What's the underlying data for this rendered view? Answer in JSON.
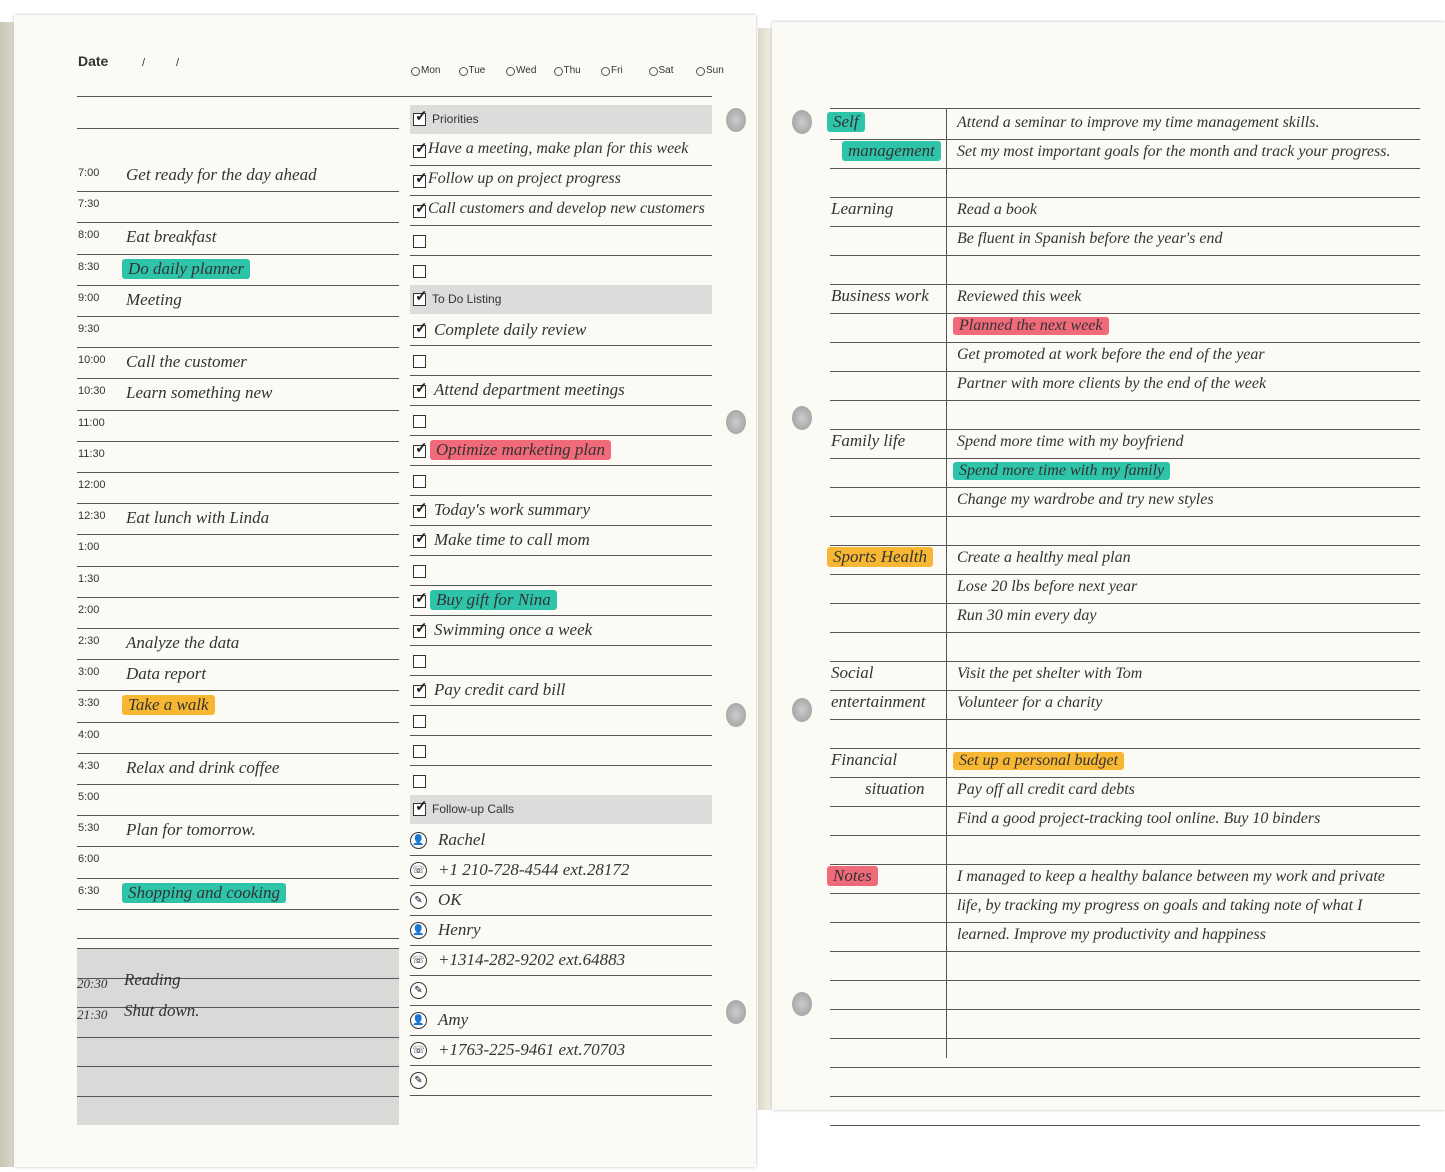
{
  "left_page": {
    "date_label": "Date",
    "date_separators": [
      "/",
      "/"
    ],
    "weekdays": [
      "Mon",
      "Tue",
      "Wed",
      "Thu",
      "Fri",
      "Sat",
      "Sun"
    ],
    "schedule": [
      {
        "time": "7:00",
        "task": "Get ready for the day ahead"
      },
      {
        "time": "7:30"
      },
      {
        "time": "8:00",
        "task": "Eat breakfast"
      },
      {
        "time": "8:30",
        "task": "Do daily planner",
        "highlight": "#2ec4a9"
      },
      {
        "time": "9:00",
        "task": "Meeting"
      },
      {
        "time": "9:30"
      },
      {
        "time": "10:00",
        "task": "Call the customer"
      },
      {
        "time": "10:30",
        "task": "Learn something new"
      },
      {
        "time": "11:00"
      },
      {
        "time": "11:30"
      },
      {
        "time": "12:00"
      },
      {
        "time": "12:30",
        "task": "Eat lunch with Linda"
      },
      {
        "time": "1:00"
      },
      {
        "time": "1:30"
      },
      {
        "time": "2:00"
      },
      {
        "time": "2:30",
        "task": "Analyze the data"
      },
      {
        "time": "3:00",
        "task": "Data report"
      },
      {
        "time": "3:30",
        "task": "Take a walk",
        "highlight": "#f7b733"
      },
      {
        "time": "4:00"
      },
      {
        "time": "4:30",
        "task": "Relax and drink coffee"
      },
      {
        "time": "5:00"
      },
      {
        "time": "5:30",
        "task": "Plan for tomorrow."
      },
      {
        "time": "6:00"
      },
      {
        "time": "6:30",
        "task": "Shopping and cooking",
        "highlight": "#2ec4a9"
      }
    ],
    "evening": [
      {
        "time": "20:30",
        "task": "Reading"
      },
      {
        "time": "21:30",
        "task": "Shut down."
      }
    ],
    "sections": [
      {
        "title": "Priorities",
        "items": [
          {
            "checked": true,
            "text": "Have a meeting, make plan for this week"
          },
          {
            "checked": true,
            "text": "Follow up on project progress"
          },
          {
            "checked": true,
            "text": "Call customers and develop new customers"
          },
          {
            "checked": false
          },
          {
            "checked": false
          }
        ]
      },
      {
        "title": "To Do Listing",
        "items": [
          {
            "checked": true,
            "text": "Complete daily review"
          },
          {
            "checked": false
          },
          {
            "checked": true,
            "text": "Attend department meetings"
          },
          {
            "checked": false
          },
          {
            "checked": true,
            "text": "Optimize marketing plan",
            "highlight": "#f06a7a"
          },
          {
            "checked": false
          },
          {
            "checked": true,
            "text": "Today's work summary"
          },
          {
            "checked": true,
            "text": "Make time to call mom"
          },
          {
            "checked": false
          },
          {
            "checked": true,
            "text": "Buy gift for Nina",
            "highlight": "#2ec4a9"
          },
          {
            "checked": true,
            "text": "Swimming once a week"
          },
          {
            "checked": false
          },
          {
            "checked": true,
            "text": "Pay credit card bill"
          },
          {
            "checked": false
          },
          {
            "checked": false
          },
          {
            "checked": false
          }
        ]
      },
      {
        "title": "Follow-up Calls",
        "calls": [
          {
            "icon": "person",
            "text": "Rachel"
          },
          {
            "icon": "phone",
            "text": "+1 210-728-4544 ext.28172"
          },
          {
            "icon": "note",
            "text": "OK"
          },
          {
            "icon": "person",
            "text": "Henry"
          },
          {
            "icon": "phone",
            "text": "+1314-282-9202 ext.64883"
          },
          {
            "icon": "note"
          },
          {
            "icon": "person",
            "text": "Amy"
          },
          {
            "icon": "phone",
            "text": "+1763-225-9461 ext.70703"
          },
          {
            "icon": "note"
          }
        ]
      }
    ]
  },
  "right_page": {
    "categories": [
      {
        "label": [
          "Self",
          "management"
        ],
        "highlight": "#2ec4a9",
        "entries": [
          {
            "text": "Attend a seminar to improve my time management skills."
          },
          {
            "text": "Set my most important goals for the month and track your progress."
          }
        ]
      },
      {
        "label": [
          "Learning"
        ],
        "entries": [
          {
            "text": "Read a book"
          },
          {
            "text": "Be fluent in Spanish before the year's end"
          }
        ]
      },
      {
        "label": [
          "Business work"
        ],
        "entries": [
          {
            "text": "Reviewed this week"
          },
          {
            "text": "Planned the next week",
            "highlight": "#f06a7a"
          },
          {
            "text": "Get promoted at work before the end of the year"
          },
          {
            "text": "Partner with more clients by the end of the week"
          }
        ]
      },
      {
        "label": [
          "Family life"
        ],
        "entries": [
          {
            "text": "Spend more time with my boyfriend"
          },
          {
            "text": "Spend more time with my family",
            "highlight": "#2ec4a9"
          },
          {
            "text": "Change my wardrobe and try new styles"
          }
        ]
      },
      {
        "label": [
          "Sports Health"
        ],
        "highlight": "#f7b733",
        "entries": [
          {
            "text": "Create a healthy meal plan"
          },
          {
            "text": "Lose 20 lbs before next year"
          },
          {
            "text": "Run 30 min every day"
          }
        ]
      },
      {
        "label": [
          "Social",
          "entertainment"
        ],
        "entries": [
          {
            "text": "Visit the pet shelter with Tom"
          },
          {
            "text": "Volunteer for a charity"
          }
        ]
      },
      {
        "label": [
          "Financial",
          "situation"
        ],
        "entries": [
          {
            "text": "Set up a personal budget",
            "highlight": "#f7b733"
          },
          {
            "text": "Pay off all credit card debts"
          },
          {
            "text": "Find a good project-tracking tool online. Buy 10 binders"
          }
        ]
      },
      {
        "label": [
          "Notes"
        ],
        "highlight": "#f06a7a",
        "notes": true,
        "entries": [
          {
            "text": "I managed to keep a healthy balance between my work and private"
          },
          {
            "text": "life, by tracking my progress on goals and taking note of what I"
          },
          {
            "text": "learned. Improve my productivity and happiness"
          }
        ]
      }
    ]
  }
}
